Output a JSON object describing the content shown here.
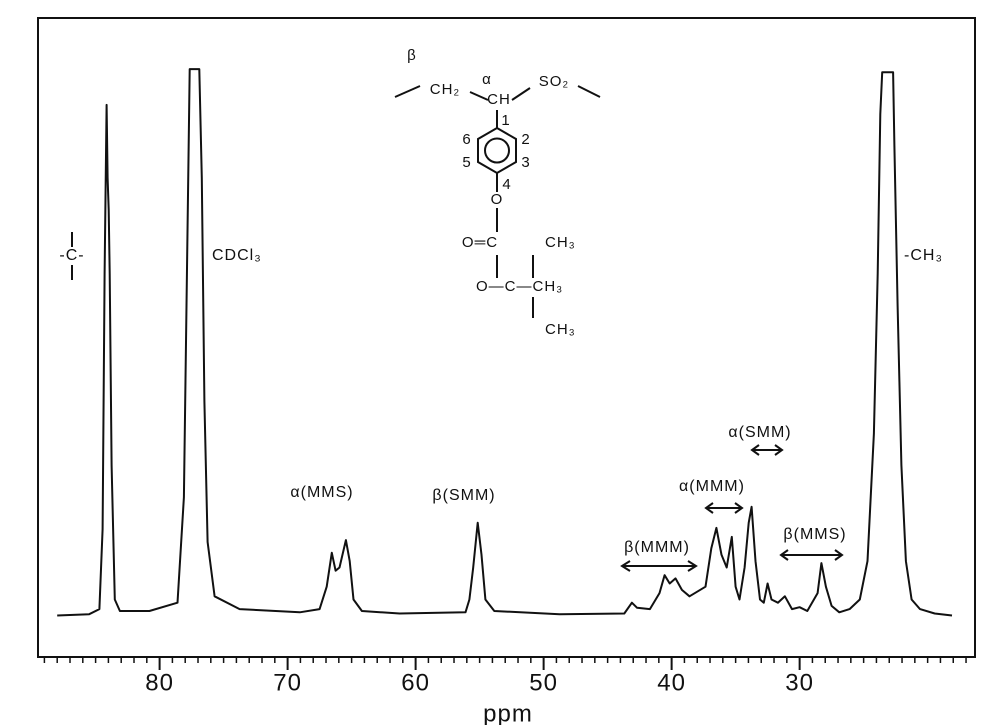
{
  "chart_data": {
    "type": "line",
    "xlabel": "ppm",
    "color": "#111111",
    "xlim": [
      89.5,
      16.3
    ],
    "ylim": [
      0,
      100
    ],
    "xticks": [
      80,
      70,
      60,
      50,
      40,
      30
    ],
    "xminorticks": [
      17,
      18,
      19,
      20,
      21,
      22,
      23,
      24,
      25,
      26,
      27,
      28,
      29,
      31,
      32,
      33,
      34,
      35,
      36,
      37,
      38,
      39,
      41,
      42,
      43,
      44,
      45,
      46,
      47,
      48,
      49,
      51,
      52,
      53,
      54,
      55,
      56,
      57,
      58,
      59,
      61,
      62,
      63,
      64,
      65,
      66,
      67,
      68,
      69,
      71,
      72,
      73,
      74,
      75,
      76,
      77,
      78,
      79,
      81,
      82,
      83,
      84,
      85,
      86,
      87,
      88,
      89
    ],
    "x": [
      88.0,
      85.5,
      84.7,
      84.45,
      84.3,
      84.14,
      84.06,
      83.98,
      83.9,
      83.75,
      83.5,
      83.1,
      80.8,
      78.6,
      78.1,
      77.8,
      77.65,
      76.9,
      76.7,
      76.5,
      76.25,
      75.7,
      73.75,
      69.05,
      67.5,
      66.95,
      66.55,
      66.25,
      65.95,
      65.45,
      65.15,
      64.85,
      64.2,
      61.25,
      56.1,
      55.8,
      55.5,
      55.15,
      54.85,
      54.55,
      53.85,
      48.75,
      43.7,
      43.1,
      42.7,
      41.7,
      40.95,
      40.55,
      40.15,
      39.7,
      39.2,
      38.6,
      37.35,
      36.9,
      36.5,
      36.1,
      35.7,
      35.3,
      35.0,
      34.7,
      34.3,
      33.98,
      33.75,
      33.45,
      33.1,
      32.8,
      32.5,
      32.2,
      31.7,
      31.15,
      30.6,
      30.0,
      29.4,
      28.6,
      28.3,
      27.95,
      27.5,
      26.9,
      26.1,
      25.3,
      24.7,
      24.2,
      23.9,
      23.7,
      23.55,
      22.7,
      22.6,
      22.35,
      22.05,
      21.7,
      21.25,
      20.6,
      19.45,
      18.1
    ],
    "values": [
      6.5,
      6.7,
      7.5,
      20,
      60,
      86.4,
      75,
      70,
      60,
      30,
      9,
      7.2,
      7.2,
      8.5,
      25,
      70,
      92,
      92,
      75,
      40,
      18,
      9.5,
      7.5,
      7,
      7.5,
      11,
      16.3,
      13.5,
      14,
      18.3,
      15,
      9,
      7.2,
      6.8,
      7,
      9,
      14,
      21,
      16,
      9,
      7.2,
      6.7,
      6.8,
      8.5,
      7.7,
      7.5,
      10,
      12.8,
      11.5,
      12.3,
      10.5,
      9.5,
      11,
      17,
      20.2,
      16,
      14,
      18.8,
      11,
      9,
      14,
      21,
      23.5,
      15,
      9,
      8.5,
      11.5,
      9,
      8.5,
      9.5,
      7.5,
      7.8,
      7.2,
      10,
      14.7,
      11,
      8,
      7,
      7.5,
      9,
      15,
      35,
      60,
      85,
      91.5,
      91.5,
      80,
      55,
      30,
      15,
      9,
      7.5,
      6.8,
      6.5
    ],
    "annotations": [
      "-C-",
      "CDCl₃",
      "-CH₃",
      "α(MMS)",
      "β(SMM)",
      "β(MMM)",
      "α(MMM)",
      "α(SMM)",
      "β(MMS)"
    ],
    "structure": [
      "β",
      "CH₂",
      "α",
      "CH",
      "SO₂",
      "1",
      "2",
      "3",
      "4",
      "5",
      "6",
      "O",
      "O═C",
      "CH₃",
      "O—C—CH₃",
      "CH₃"
    ]
  }
}
